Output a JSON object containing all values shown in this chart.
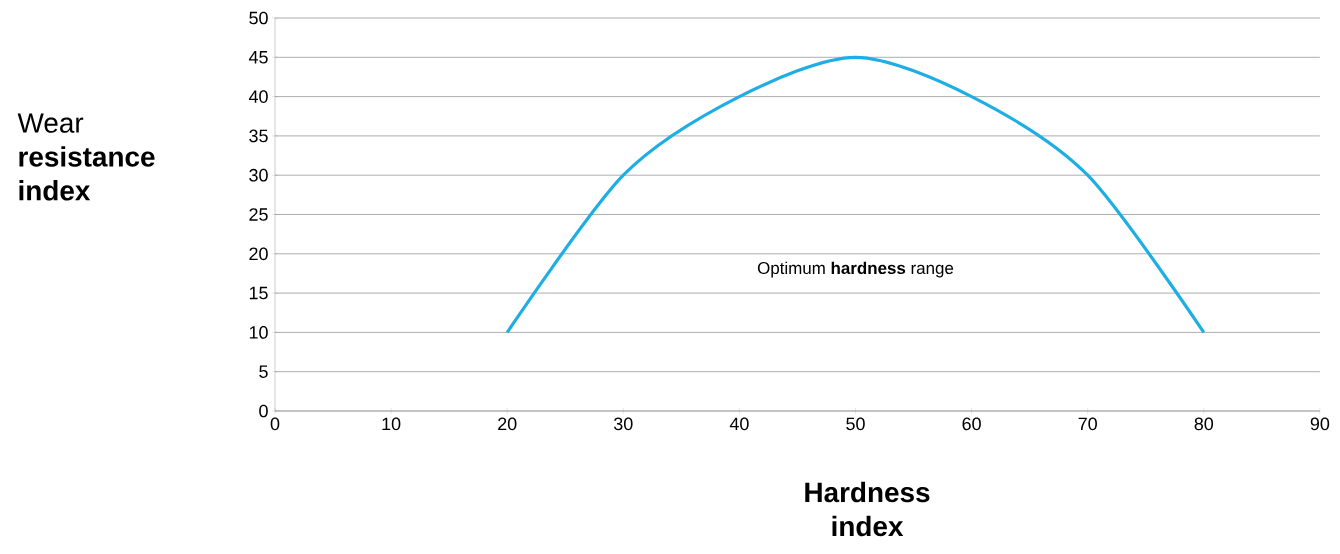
{
  "chart_data": {
    "type": "line",
    "xlabel": "Hardness index",
    "ylabel": "Wear **resistance index**",
    "annotations": [
      "Optimum **hardness** range"
    ],
    "x": [
      20,
      30,
      40,
      50,
      60,
      70,
      80
    ],
    "series": [
      {
        "color": "#1eaee3",
        "values": [
          10,
          30,
          40,
          45,
          40,
          30,
          10
        ]
      }
    ],
    "xlim": [
      0,
      90
    ],
    "xticks": [
      0,
      10,
      20,
      30,
      40,
      50,
      60,
      70,
      80,
      90
    ],
    "ylim": [
      0,
      50
    ],
    "yticks": [
      0,
      5,
      10,
      15,
      20,
      25,
      30,
      35,
      40,
      45,
      50
    ],
    "grid": "y",
    "marker": "none",
    "line_style": "solid"
  }
}
